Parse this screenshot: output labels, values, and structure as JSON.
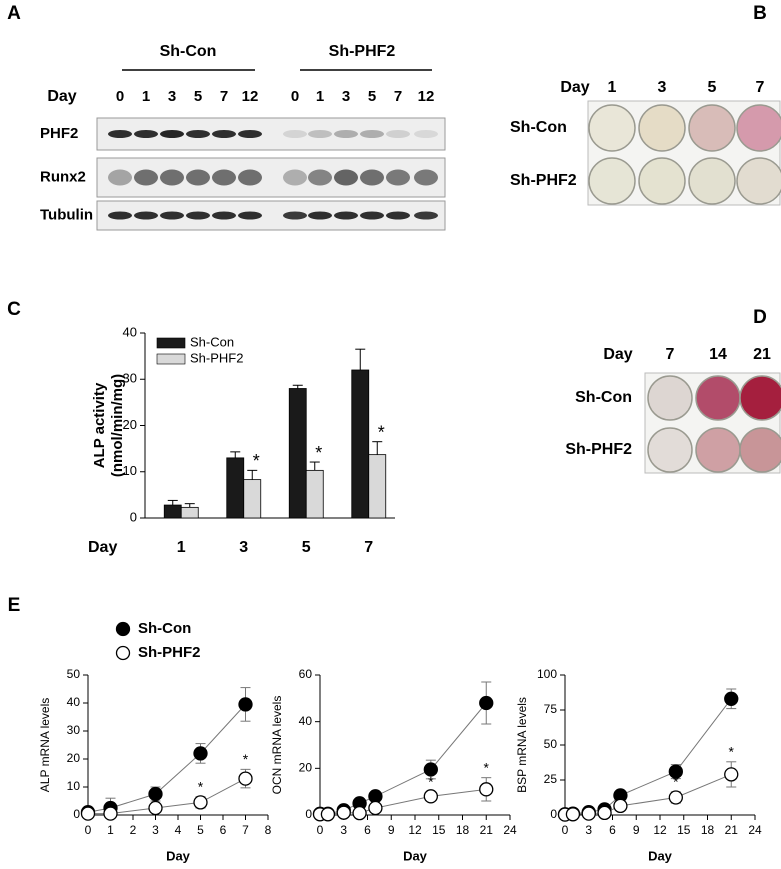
{
  "panel_a": {
    "label": "A",
    "day_label": "Day",
    "groups": [
      {
        "name": "Sh-Con",
        "days": [
          0,
          1,
          3,
          5,
          7,
          12
        ]
      },
      {
        "name": "Sh-PHF2",
        "days": [
          0,
          1,
          3,
          5,
          7,
          12
        ]
      }
    ],
    "rows": [
      "PHF2",
      "Runx2",
      "Tubulin"
    ]
  },
  "panel_b": {
    "label": "B",
    "day_label": "Day",
    "days": [
      1,
      3,
      5,
      7
    ],
    "rows": [
      "Sh-Con",
      "Sh-PHF2"
    ]
  },
  "panel_c_label": "C",
  "panel_d": {
    "label": "D",
    "day_label": "Day",
    "days": [
      7,
      14,
      21
    ],
    "rows": [
      "Sh-Con",
      "Sh-PHF2"
    ]
  },
  "panel_e_label": "E",
  "chart_data": [
    {
      "type": "bar",
      "y_label": [
        "ALP activity",
        "(nmol/min/mg)"
      ],
      "x_label": "Day",
      "categories": [
        "1",
        "3",
        "5",
        "7"
      ],
      "ylim": [
        0,
        40
      ],
      "yticks": [
        0,
        10,
        20,
        30,
        40
      ],
      "legend": "upper left",
      "series": [
        {
          "name": "Sh-Con",
          "color": "#1a1a1a",
          "values": [
            2.8,
            13,
            28,
            32
          ],
          "error": [
            1,
            1.3,
            0.7,
            4.5
          ]
        },
        {
          "name": "Sh-PHF2",
          "color": "#d9d9d9",
          "values": [
            2.3,
            8.3,
            10.3,
            13.7
          ],
          "error": [
            0.8,
            2,
            1.8,
            2.8
          ],
          "significance": [
            null,
            "*",
            "*",
            "*"
          ]
        }
      ]
    },
    {
      "type": "line",
      "y_label": "ALP mRNA levels",
      "x_label": "Day",
      "x": [
        0,
        1,
        3,
        5,
        7
      ],
      "xlim": [
        0,
        8
      ],
      "xticks": [
        0,
        1,
        2,
        3,
        4,
        5,
        6,
        7,
        8
      ],
      "ylim": [
        0,
        50
      ],
      "yticks": [
        0,
        10,
        20,
        30,
        40,
        50
      ],
      "legend": "upper left",
      "series": [
        {
          "name": "Sh-Con",
          "color": "#000000",
          "marker_fill": "#000000",
          "values": [
            1,
            2.5,
            7.5,
            22,
            39.5
          ],
          "error": [
            0.5,
            3.5,
            2.5,
            3.5,
            6
          ]
        },
        {
          "name": "Sh-PHF2",
          "color": "#000000",
          "marker_fill": "#ffffff",
          "values": [
            0.5,
            0.5,
            2.5,
            4.5,
            13
          ],
          "error": [
            0.3,
            0.5,
            1.5,
            2,
            3.3
          ],
          "significance": [
            null,
            null,
            null,
            "*",
            "*"
          ]
        }
      ]
    },
    {
      "type": "line",
      "y_label": "OCN mRNA levels",
      "x_label": "Day",
      "x": [
        0,
        1,
        3,
        5,
        7,
        14,
        21
      ],
      "xlim": [
        0,
        24
      ],
      "xticks": [
        0,
        3,
        6,
        9,
        12,
        15,
        18,
        21,
        24
      ],
      "ylim": [
        0,
        60
      ],
      "yticks": [
        0,
        20,
        40,
        60
      ],
      "series": [
        {
          "color": "#000000",
          "marker_fill": "#000000",
          "values": [
            0.5,
            0.5,
            2,
            5,
            8,
            19.5,
            48
          ],
          "error": [
            0.3,
            0.3,
            1,
            2,
            2,
            4,
            9
          ]
        },
        {
          "color": "#000000",
          "marker_fill": "#ffffff",
          "values": [
            0.3,
            0.3,
            1,
            0.8,
            3,
            8,
            11
          ],
          "error": [
            0.3,
            0.3,
            0.8,
            0.5,
            1.5,
            2,
            5
          ],
          "significance": [
            null,
            null,
            null,
            null,
            null,
            "*",
            "*"
          ]
        }
      ]
    },
    {
      "type": "line",
      "y_label": "BSP mRNA levels",
      "x_label": "Day",
      "x": [
        0,
        1,
        3,
        5,
        7,
        14,
        21
      ],
      "xlim": [
        0,
        24
      ],
      "xticks": [
        0,
        3,
        6,
        9,
        12,
        15,
        18,
        21,
        24
      ],
      "ylim": [
        0,
        100
      ],
      "yticks": [
        0,
        25,
        50,
        75,
        100
      ],
      "series": [
        {
          "color": "#000000",
          "marker_fill": "#000000",
          "values": [
            0.5,
            1,
            2,
            4,
            14,
            31,
            83
          ],
          "error": [
            0.5,
            0.5,
            1,
            1.5,
            2,
            5,
            7
          ]
        },
        {
          "color": "#000000",
          "marker_fill": "#ffffff",
          "values": [
            0.3,
            0.5,
            1,
            1.5,
            6.5,
            12.5,
            29
          ],
          "error": [
            0.3,
            0.3,
            0.5,
            1,
            2,
            4,
            9
          ],
          "significance": [
            null,
            null,
            null,
            null,
            null,
            "*",
            "*"
          ]
        }
      ]
    }
  ]
}
